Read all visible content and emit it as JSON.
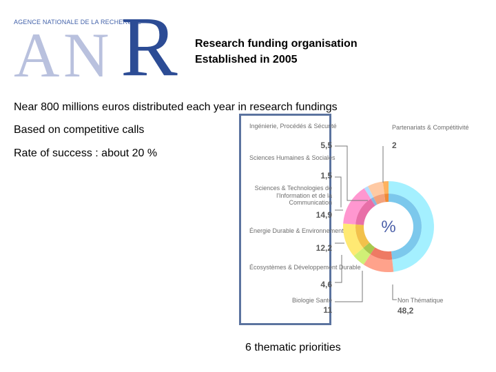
{
  "logo": {
    "agency_name": "AGENCE NATIONALE DE LA RECHERCHE",
    "letters": [
      "A",
      "N",
      "R"
    ]
  },
  "header": {
    "line1": "Research funding organisation",
    "line2": "Established in 2005"
  },
  "bullets": [
    "Near 800 millions euros distributed each year in research fundings",
    "Based on competitive calls",
    "Rate of success : about 20 %"
  ],
  "chart_data": {
    "type": "pie",
    "center_label": "%",
    "slices": [
      {
        "label": "Ingénierie, Procédés & Sécurité",
        "value": "5,5",
        "color": "#f3a27c"
      },
      {
        "label": "Sciences Humaines & Sociales",
        "value": "1,5",
        "color": "#8db5dd"
      },
      {
        "label": "Sciences & Technologies de l'Information et de la Communication",
        "value": "14,9",
        "color": "#e86fa8"
      },
      {
        "label": "Énergie Durable & Environnement",
        "value": "12,2",
        "color": "#f2c14b"
      },
      {
        "label": "Écosystèmes & Développement Durable",
        "value": "4,6",
        "color": "#a8c84e"
      },
      {
        "label": "Biologie Santé",
        "value": "11",
        "color": "#ee7a63"
      },
      {
        "label": "Non Thématique",
        "value": "48,2",
        "color": "#7cc8ec"
      },
      {
        "label": "Partenariats & Compétitivité",
        "value": "2",
        "color": "#f08a36"
      }
    ]
  },
  "caption": "6 thematic priorities"
}
